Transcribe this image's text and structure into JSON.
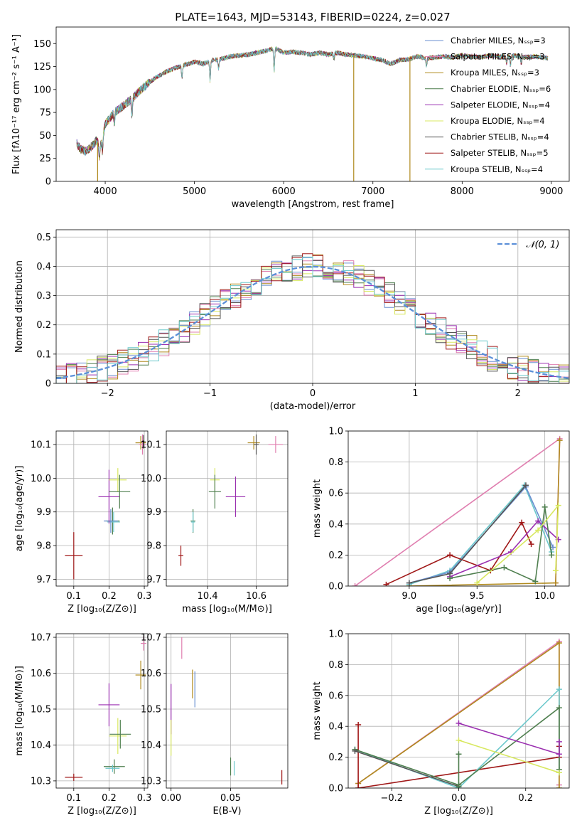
{
  "colors": [
    "#6a8fd0",
    "#e07fb0",
    "#b08a1e",
    "#4f7f4f",
    "#9a2fb0",
    "#d8e860",
    "#555555",
    "#a01818",
    "#6cc8cc"
  ],
  "chart_data": [
    {
      "id": "spectrum",
      "type": "line",
      "title": "PLATE=1643, MJD=53143, FIBERID=0224, z=0.027",
      "xlabel": "wavelength [Angstrom, rest frame]",
      "ylabel": "Flux [fλ10⁻¹⁷ erg cm⁻² s⁻¹ A⁻¹]",
      "xlim": [
        3450,
        9200
      ],
      "ylim": [
        0,
        168
      ],
      "xticks": [
        4000,
        5000,
        6000,
        7000,
        8000,
        9000
      ],
      "yticks": [
        0,
        25,
        50,
        75,
        100,
        125,
        150
      ],
      "grid": false,
      "legend": "upper-right",
      "series": [
        {
          "name": "Chabrier MILES, N_SSP=3"
        },
        {
          "name": "Salpeter MILES, N_SSP=3"
        },
        {
          "name": "Kroupa MILES, N_SSP=3"
        },
        {
          "name": "Chabrier ELODIE, N_SSP=6"
        },
        {
          "name": "Salpeter ELODIE, N_SSP=4"
        },
        {
          "name": "Kroupa ELODIE, N_SSP=4"
        },
        {
          "name": "Chabrier STELIB, N_SSP=4"
        },
        {
          "name": "Salpeter STELIB, N_SSP=5"
        },
        {
          "name": "Kroupa STELIB, N_SSP=4"
        }
      ],
      "continuum": [
        [
          3680,
          42
        ],
        [
          3720,
          35
        ],
        [
          3780,
          33
        ],
        [
          3850,
          38
        ],
        [
          3900,
          44
        ],
        [
          3950,
          40
        ],
        [
          4000,
          62
        ],
        [
          4100,
          75
        ],
        [
          4200,
          82
        ],
        [
          4300,
          90
        ],
        [
          4400,
          100
        ],
        [
          4500,
          108
        ],
        [
          4600,
          115
        ],
        [
          4700,
          120
        ],
        [
          4800,
          124
        ],
        [
          4900,
          127
        ],
        [
          5000,
          130
        ],
        [
          5100,
          128
        ],
        [
          5200,
          132
        ],
        [
          5300,
          133
        ],
        [
          5400,
          136
        ],
        [
          5500,
          137
        ],
        [
          5600,
          138
        ],
        [
          5700,
          140
        ],
        [
          5800,
          142
        ],
        [
          5900,
          145
        ],
        [
          6000,
          140
        ],
        [
          6100,
          141
        ],
        [
          6200,
          140
        ],
        [
          6300,
          138
        ],
        [
          6400,
          140
        ],
        [
          6500,
          138
        ],
        [
          6600,
          140
        ],
        [
          6700,
          138
        ],
        [
          6800,
          137
        ],
        [
          6900,
          136
        ],
        [
          7000,
          134
        ],
        [
          7100,
          132
        ],
        [
          7200,
          128
        ],
        [
          7300,
          132
        ],
        [
          7400,
          133
        ],
        [
          7500,
          136
        ],
        [
          7600,
          134
        ],
        [
          7700,
          135
        ],
        [
          7800,
          136
        ],
        [
          7900,
          135
        ],
        [
          8000,
          137
        ],
        [
          8100,
          136
        ],
        [
          8200,
          135
        ],
        [
          8300,
          137
        ],
        [
          8400,
          136
        ],
        [
          8500,
          136
        ],
        [
          8600,
          137
        ],
        [
          8700,
          135
        ],
        [
          8800,
          136
        ],
        [
          8900,
          135
        ],
        [
          8960,
          134
        ]
      ],
      "absorption": [
        [
          3934,
          18
        ],
        [
          3969,
          15
        ],
        [
          4102,
          12
        ],
        [
          4300,
          18
        ],
        [
          4861,
          14
        ],
        [
          5175,
          22
        ],
        [
          5270,
          10
        ],
        [
          5893,
          25
        ],
        [
          6563,
          6
        ],
        [
          7600,
          8
        ],
        [
          8498,
          7
        ],
        [
          8542,
          10
        ],
        [
          8662,
          8
        ]
      ],
      "drops": [
        {
          "x": 3915,
          "series": 2
        },
        {
          "x": 6785,
          "series": 2
        },
        {
          "x": 7415,
          "series": 2
        }
      ]
    },
    {
      "id": "residuals",
      "type": "bar",
      "xlabel": "(data-model)/error",
      "ylabel": "Normed distribution",
      "xlim": [
        -2.5,
        2.5
      ],
      "ylim": [
        0,
        0.525
      ],
      "xticks": [
        -2,
        -1,
        0,
        1,
        2
      ],
      "xtick_labels": [
        "−2",
        "−1",
        "0",
        "1",
        "2"
      ],
      "yticks": [
        0,
        0.1,
        0.2,
        0.3,
        0.4,
        0.5
      ],
      "grid": true,
      "legend": "upper-right",
      "normal_label": "𝒩(0, 1)",
      "bin_width": 0.1,
      "normal_curve": {
        "mean": 0,
        "sigma": 1
      }
    },
    {
      "id": "age-Z",
      "type": "scatter",
      "xlabel": "Z [log₁₀(Z/Z⊙)]",
      "ylabel": "age  [log₁₀(age/yr)]",
      "xlim": [
        0.05,
        0.31
      ],
      "ylim": [
        9.68,
        10.14
      ],
      "xticks": [
        0.1,
        0.2,
        0.3
      ],
      "xtick_labels": [
        "0.1",
        "0.2",
        "0.3"
      ],
      "yticks": [
        9.7,
        9.8,
        9.9,
        10.0,
        10.1
      ],
      "ytick_labels": [
        "9.7",
        "9.8",
        "9.9",
        "10.0",
        "10.1"
      ],
      "grid": true,
      "points": [
        {
          "x": 0.1,
          "y": 9.77,
          "xe": 0.025,
          "ye": 0.07,
          "c": 7
        },
        {
          "x": 0.21,
          "y": 9.873,
          "xe": 0.02,
          "ye": 0.04,
          "c": 3
        },
        {
          "x": 0.213,
          "y": 9.87,
          "xe": 0.018,
          "ye": 0.03,
          "c": 8
        },
        {
          "x": 0.205,
          "y": 9.873,
          "xe": 0.02,
          "ye": 0.035,
          "c": 0
        },
        {
          "x": 0.2,
          "y": 9.945,
          "xe": 0.03,
          "ye": 0.08,
          "c": 4
        },
        {
          "x": 0.225,
          "y": 9.995,
          "xe": 0.025,
          "ye": 0.035,
          "c": 5
        },
        {
          "x": 0.23,
          "y": 9.96,
          "xe": 0.03,
          "ye": 0.05,
          "c": 3
        },
        {
          "x": 0.29,
          "y": 10.105,
          "xe": 0.015,
          "ye": 0.02,
          "c": 2
        },
        {
          "x": 0.295,
          "y": 10.1,
          "xe": 0.01,
          "ye": 0.03,
          "c": 1
        },
        {
          "x": 0.298,
          "y": 10.108,
          "xe": 0.006,
          "ye": 0.02,
          "c": 6
        }
      ]
    },
    {
      "id": "age-mass",
      "type": "scatter",
      "xlabel": "mass [log₁₀(M/M⊙)]",
      "xlim": [
        10.23,
        10.73
      ],
      "ylim": [
        9.68,
        10.14
      ],
      "xticks": [
        10.4,
        10.6
      ],
      "xtick_labels": [
        "10.4",
        "10.6"
      ],
      "yticks": [
        9.7,
        9.8,
        9.9,
        10.0,
        10.1
      ],
      "ytick_labels": [
        "9.7",
        "9.8",
        "9.9",
        "10.0",
        "10.1"
      ],
      "grid": true,
      "points": [
        {
          "x": 10.29,
          "y": 9.77,
          "xe": 0.01,
          "ye": 0.03,
          "c": 7
        },
        {
          "x": 10.34,
          "y": 9.873,
          "xe": 0.01,
          "ye": 0.035,
          "c": 3
        },
        {
          "x": 10.34,
          "y": 9.87,
          "xe": 0.008,
          "ye": 0.03,
          "c": 8
        },
        {
          "x": 10.43,
          "y": 9.995,
          "xe": 0.02,
          "ye": 0.035,
          "c": 5
        },
        {
          "x": 10.43,
          "y": 9.96,
          "xe": 0.025,
          "ye": 0.05,
          "c": 3
        },
        {
          "x": 10.515,
          "y": 9.945,
          "xe": 0.04,
          "ye": 0.06,
          "c": 4
        },
        {
          "x": 10.59,
          "y": 10.105,
          "xe": 0.025,
          "ye": 0.02,
          "c": 2
        },
        {
          "x": 10.6,
          "y": 10.1,
          "xe": 0.01,
          "ye": 0.03,
          "c": 6
        },
        {
          "x": 10.68,
          "y": 10.1,
          "xe": 0.03,
          "ye": 0.025,
          "c": 1
        }
      ]
    },
    {
      "id": "weight-age",
      "type": "line",
      "xlabel": "age  [log₁₀(age/yr)]",
      "ylabel": "mass weight",
      "xlim": [
        8.55,
        10.18
      ],
      "ylim": [
        0,
        1.0
      ],
      "xticks": [
        9.0,
        9.5,
        10.0
      ],
      "xtick_labels": [
        "9.0",
        "9.5",
        "10.0"
      ],
      "yticks": [
        0,
        0.2,
        0.4,
        0.6,
        0.8,
        1.0
      ],
      "ytick_labels": [
        "0.0",
        "0.2",
        "0.4",
        "0.6",
        "0.8",
        "1.0"
      ],
      "grid": true,
      "series": [
        {
          "c": 1,
          "pts": [
            [
              8.6,
              0
            ],
            [
              10.11,
              0.95
            ],
            [
              10.08,
              0.02
            ]
          ]
        },
        {
          "c": 2,
          "pts": [
            [
              9.0,
              0
            ],
            [
              10.08,
              0.02
            ],
            [
              10.11,
              0.94
            ]
          ]
        },
        {
          "c": 8,
          "pts": [
            [
              9.0,
              0.01
            ],
            [
              9.3,
              0.1
            ],
            [
              9.85,
              0.65
            ],
            [
              10.05,
              0.22
            ]
          ]
        },
        {
          "c": 0,
          "pts": [
            [
              9.0,
              0.02
            ],
            [
              9.3,
              0.09
            ],
            [
              9.86,
              0.64
            ],
            [
              10.06,
              0.25
            ]
          ]
        },
        {
          "c": 7,
          "pts": [
            [
              8.83,
              0.01
            ],
            [
              9.3,
              0.2
            ],
            [
              9.6,
              0.1
            ],
            [
              9.83,
              0.41
            ],
            [
              9.9,
              0.27
            ]
          ]
        },
        {
          "c": 4,
          "pts": [
            [
              9.3,
              0.06
            ],
            [
              9.75,
              0.22
            ],
            [
              9.95,
              0.42
            ],
            [
              10.1,
              0.3
            ]
          ]
        },
        {
          "c": 3,
          "pts": [
            [
              9.3,
              0.05
            ],
            [
              9.7,
              0.12
            ],
            [
              9.93,
              0.03
            ],
            [
              10.0,
              0.51
            ],
            [
              10.05,
              0.2
            ]
          ]
        },
        {
          "c": 5,
          "pts": [
            [
              9.5,
              0.02
            ],
            [
              9.95,
              0.36
            ],
            [
              10.1,
              0.52
            ],
            [
              10.08,
              0.1
            ]
          ]
        },
        {
          "c": 6,
          "pts": [
            [
              9.0,
              0.02
            ],
            [
              9.3,
              0.08
            ],
            [
              9.86,
              0.65
            ]
          ]
        }
      ]
    },
    {
      "id": "mass-Z",
      "type": "scatter",
      "xlabel": "Z [log₁₀(Z/Z⊙)]",
      "ylabel": "mass [log₁₀(M/M⊙)]",
      "xlim": [
        0.05,
        0.31
      ],
      "ylim": [
        10.28,
        10.71
      ],
      "xticks": [
        0.1,
        0.2,
        0.3
      ],
      "xtick_labels": [
        "0.1",
        "0.2",
        "0.3"
      ],
      "yticks": [
        10.3,
        10.4,
        10.5,
        10.6,
        10.7
      ],
      "ytick_labels": [
        "10.3",
        "10.4",
        "10.5",
        "10.6",
        "10.7"
      ],
      "grid": true,
      "points": [
        {
          "x": 0.1,
          "y": 10.31,
          "xe": 0.025,
          "ye": 0.01,
          "c": 7
        },
        {
          "x": 0.215,
          "y": 10.34,
          "xe": 0.03,
          "ye": 0.02,
          "c": 3
        },
        {
          "x": 0.21,
          "y": 10.335,
          "xe": 0.02,
          "ye": 0.01,
          "c": 8
        },
        {
          "x": 0.2,
          "y": 10.512,
          "xe": 0.03,
          "ye": 0.06,
          "c": 4
        },
        {
          "x": 0.225,
          "y": 10.425,
          "xe": 0.025,
          "ye": 0.05,
          "c": 5
        },
        {
          "x": 0.232,
          "y": 10.43,
          "xe": 0.03,
          "ye": 0.04,
          "c": 3
        },
        {
          "x": 0.29,
          "y": 10.595,
          "xe": 0.015,
          "ye": 0.04,
          "c": 2
        },
        {
          "x": 0.298,
          "y": 10.683,
          "xe": 0.008,
          "ye": 0.02,
          "c": 1
        }
      ]
    },
    {
      "id": "mass-EBV",
      "type": "scatter",
      "xlabel": "E(B-V)",
      "xlim": [
        -0.004,
        0.098
      ],
      "ylim": [
        10.28,
        10.71
      ],
      "xticks": [
        0.0,
        0.05
      ],
      "xtick_labels": [
        "0.00",
        "0.05"
      ],
      "yticks": [
        10.3,
        10.4,
        10.5,
        10.6,
        10.7
      ],
      "ytick_labels": [
        "10.3",
        "10.4",
        "10.5",
        "10.6",
        "10.7"
      ],
      "grid": true,
      "points": [
        {
          "x": 0.0,
          "y": 10.5,
          "xe": 0,
          "ye": 0.07,
          "c": 4
        },
        {
          "x": 0.0,
          "y": 10.42,
          "xe": 0,
          "ye": 0.05,
          "c": 5
        },
        {
          "x": 0.009,
          "y": 10.67,
          "xe": 0,
          "ye": 0.03,
          "c": 1
        },
        {
          "x": 0.018,
          "y": 10.57,
          "xe": 0,
          "ye": 0.04,
          "c": 2
        },
        {
          "x": 0.02,
          "y": 10.555,
          "xe": 0,
          "ye": 0.05,
          "c": 0
        },
        {
          "x": 0.05,
          "y": 10.34,
          "xe": 0,
          "ye": 0.025,
          "c": 3
        },
        {
          "x": 0.053,
          "y": 10.335,
          "xe": 0,
          "ye": 0.02,
          "c": 8
        },
        {
          "x": 0.093,
          "y": 10.31,
          "xe": 0,
          "ye": 0.02,
          "c": 7
        }
      ]
    },
    {
      "id": "weight-Z",
      "type": "line",
      "xlabel": "Z [log₁₀(Z/Z⊙)]",
      "ylabel": "mass weight",
      "xlim": [
        -0.33,
        0.33
      ],
      "ylim": [
        0,
        1.0
      ],
      "xticks": [
        -0.2,
        0.0,
        0.2
      ],
      "xtick_labels": [
        "−0.2",
        "0.0",
        "0.2"
      ],
      "yticks": [
        0,
        0.2,
        0.4,
        0.6,
        0.8,
        1.0
      ],
      "ytick_labels": [
        "0.0",
        "0.2",
        "0.4",
        "0.6",
        "0.8",
        "1.0"
      ],
      "grid": true,
      "series": [
        {
          "c": 1,
          "pts": [
            [
              -0.3,
              0.03
            ],
            [
              0.3,
              0.95
            ],
            [
              0.3,
              0.02
            ]
          ]
        },
        {
          "c": 2,
          "pts": [
            [
              -0.3,
              0.03
            ],
            [
              0.3,
              0.94
            ],
            [
              0.3,
              0.0
            ]
          ]
        },
        {
          "c": 7,
          "pts": [
            [
              -0.3,
              0.41
            ],
            [
              -0.3,
              0.0
            ],
            [
              0.3,
              0.2
            ],
            [
              0.3,
              0.27
            ]
          ]
        },
        {
          "c": 8,
          "pts": [
            [
              -0.31,
              0.25
            ],
            [
              0.0,
              0.0
            ],
            [
              0.3,
              0.64
            ],
            [
              0.3,
              0.1
            ]
          ]
        },
        {
          "c": 3,
          "pts": [
            [
              -0.31,
              0.25
            ],
            [
              0.0,
              0.02
            ],
            [
              0.3,
              0.52
            ],
            [
              0.3,
              0.12
            ]
          ]
        },
        {
          "c": 6,
          "pts": [
            [
              -0.31,
              0.24
            ],
            [
              0.0,
              0.01
            ]
          ]
        },
        {
          "c": 4,
          "pts": [
            [
              0.0,
              0.42
            ],
            [
              0.3,
              0.22
            ],
            [
              0.3,
              0.3
            ]
          ]
        },
        {
          "c": 5,
          "pts": [
            [
              0.0,
              0.31
            ],
            [
              0.3,
              0.1
            ]
          ]
        },
        {
          "c": 3,
          "pts": [
            [
              0.0,
              0.22
            ],
            [
              0.0,
              0.01
            ]
          ]
        }
      ]
    }
  ]
}
